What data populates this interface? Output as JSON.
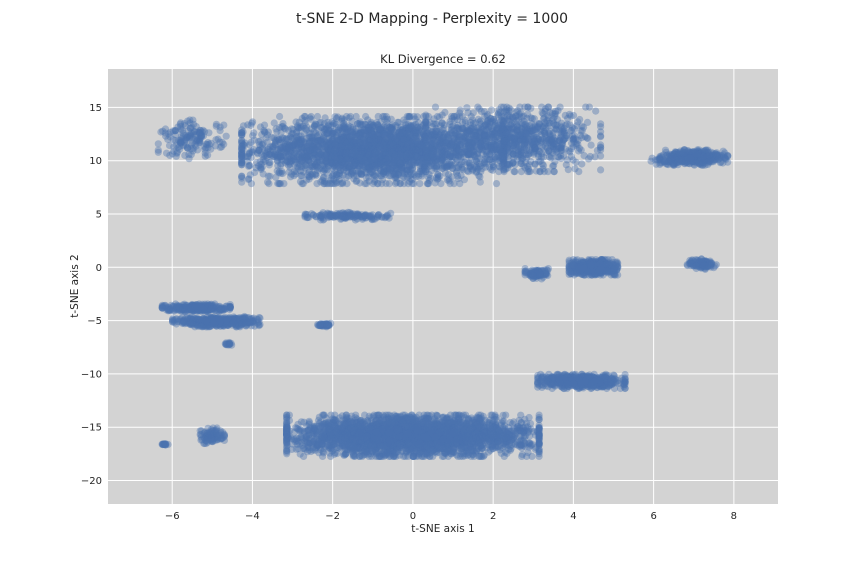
{
  "chart_data": {
    "type": "scatter",
    "title": "t-SNE 2-D Mapping - Perplexity = 1000",
    "subtitle": "KL Divergence = 0.62",
    "xlabel": "t-SNE axis 1",
    "ylabel": "t-SNE axis 2",
    "xlim": [
      -7.6,
      9.1
    ],
    "ylim": [
      -22.2,
      18.6
    ],
    "xticks": [
      -6,
      -4,
      -2,
      0,
      2,
      4,
      6,
      8
    ],
    "yticks": [
      -20,
      -15,
      -10,
      -5,
      0,
      5,
      10,
      15
    ],
    "xtick_labels": [
      "−6",
      "−4",
      "−2",
      "0",
      "2",
      "4",
      "6",
      "8"
    ],
    "ytick_labels": [
      "−20",
      "−15",
      "−10",
      "−5",
      "0",
      "5",
      "10",
      "15"
    ],
    "grid": true,
    "background_color": "#d3d3d3",
    "point_color": "#4c72b0",
    "point_alpha": 0.4,
    "clusters": [
      {
        "center": [
          -1.0,
          11.0
        ],
        "spread": [
          2.7,
          2.6
        ],
        "count": 2600
      },
      {
        "center": [
          2.5,
          12.0
        ],
        "spread": [
          1.8,
          2.5
        ],
        "count": 900
      },
      {
        "center": [
          -1.6,
          4.8
        ],
        "spread": [
          0.9,
          0.3
        ],
        "count": 150
      },
      {
        "center": [
          -5.5,
          12.0
        ],
        "spread": [
          0.7,
          1.5
        ],
        "count": 150
      },
      {
        "center": [
          7.0,
          10.3
        ],
        "spread": [
          0.7,
          0.6
        ],
        "count": 400
      },
      {
        "center": [
          6.3,
          10.0
        ],
        "spread": [
          0.3,
          0.3
        ],
        "count": 30
      },
      {
        "center": [
          4.5,
          0.0
        ],
        "spread": [
          0.5,
          0.6
        ],
        "count": 600
      },
      {
        "center": [
          3.1,
          -0.6
        ],
        "spread": [
          0.25,
          0.4
        ],
        "count": 110
      },
      {
        "center": [
          7.2,
          0.3
        ],
        "spread": [
          0.3,
          0.4
        ],
        "count": 120
      },
      {
        "center": [
          -5.4,
          -3.8
        ],
        "spread": [
          0.7,
          0.3
        ],
        "count": 320
      },
      {
        "center": [
          -4.9,
          -5.1
        ],
        "spread": [
          0.9,
          0.4
        ],
        "count": 500
      },
      {
        "center": [
          -4.6,
          -7.2
        ],
        "spread": [
          0.1,
          0.2
        ],
        "count": 15
      },
      {
        "center": [
          -2.2,
          -5.4
        ],
        "spread": [
          0.15,
          0.15
        ],
        "count": 40
      },
      {
        "center": [
          4.2,
          -10.7
        ],
        "spread": [
          0.9,
          0.55
        ],
        "count": 650
      },
      {
        "center": [
          0.0,
          -15.8
        ],
        "spread": [
          2.6,
          1.6
        ],
        "count": 3200
      },
      {
        "center": [
          -5.0,
          -15.8
        ],
        "spread": [
          0.25,
          0.6
        ],
        "count": 100
      },
      {
        "center": [
          -6.2,
          -16.6
        ],
        "spread": [
          0.08,
          0.08
        ],
        "count": 15
      }
    ]
  }
}
